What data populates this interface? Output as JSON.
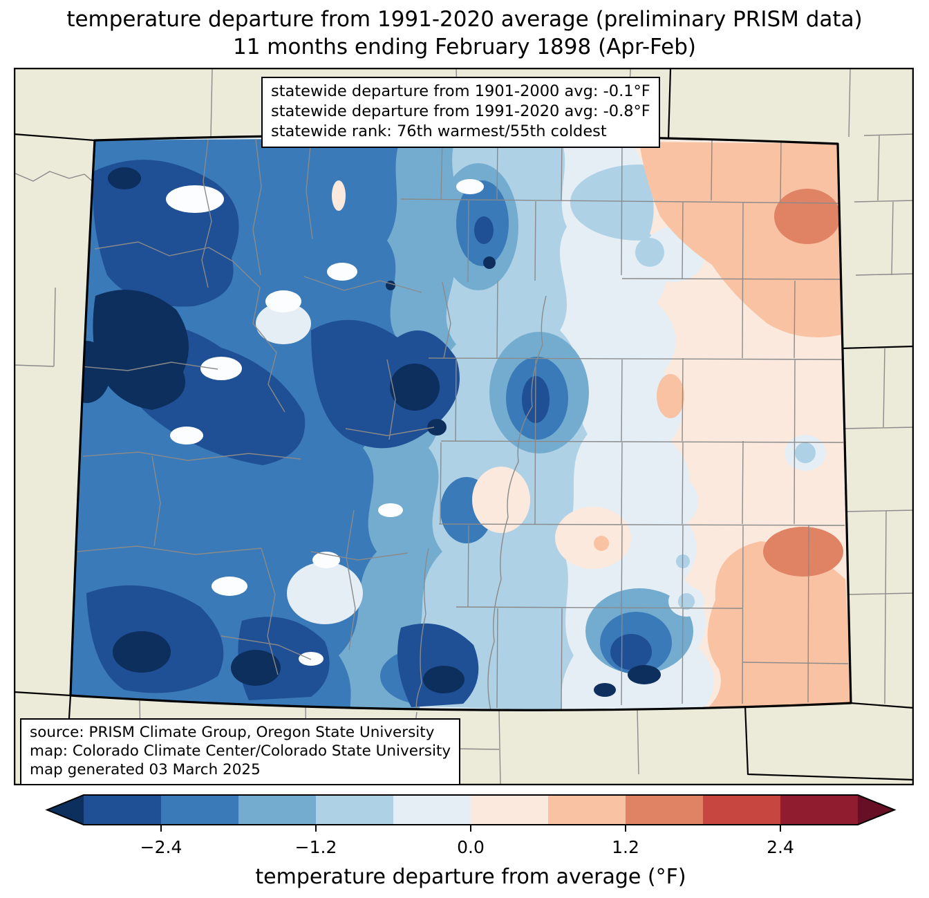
{
  "title": {
    "line1": "temperature departure from 1991-2020 average (preliminary PRISM data)",
    "line2": "11 months ending February 1898 (Apr-Feb)"
  },
  "stats_box": {
    "line1": "statewide departure from 1901-2000 avg: -0.1°F",
    "line2": "statewide departure from 1991-2020 avg: -0.8°F",
    "line3": "statewide rank: 76th warmest/55th coldest"
  },
  "source_box": {
    "line1": "source: PRISM Climate Group, Oregon State University",
    "line2": "map: Colorado Climate Center/Colorado State University",
    "line3": "map generated 03 March 2025"
  },
  "statistics": {
    "departure_from_1901_2000_avg_F": -0.1,
    "departure_from_1991_2020_avg_F": -0.8,
    "rank_warmest": 76,
    "rank_coldest": 55
  },
  "map": {
    "region": "Colorado with surrounding states, county boundaries shown",
    "background_color": "#ecead9",
    "county_line_color": "#8a8a8a",
    "state_border_color": "#000000",
    "white_patch_color": "#fcfdfe"
  },
  "colorbar": {
    "label": "temperature departure from average (°F)",
    "ticks": [
      "−2.4",
      "−1.2",
      "0.0",
      "1.2",
      "2.4"
    ],
    "tick_values": [
      -2.4,
      -1.2,
      0.0,
      1.2,
      2.4
    ],
    "range": [
      -3.0,
      3.0
    ],
    "bin_edges": [
      -3.0,
      -2.4,
      -1.8,
      -1.2,
      -0.6,
      0.0,
      0.6,
      1.2,
      1.8,
      2.4,
      3.0
    ],
    "extend": "both",
    "colors": [
      "#0d2f5e",
      "#1f4f94",
      "#3a7ab8",
      "#74accf",
      "#aed1e6",
      "#e5eef5",
      "#fbe9dd",
      "#f9c2a3",
      "#e08264",
      "#c7463f",
      "#8f1d2f",
      "#670f24"
    ]
  }
}
